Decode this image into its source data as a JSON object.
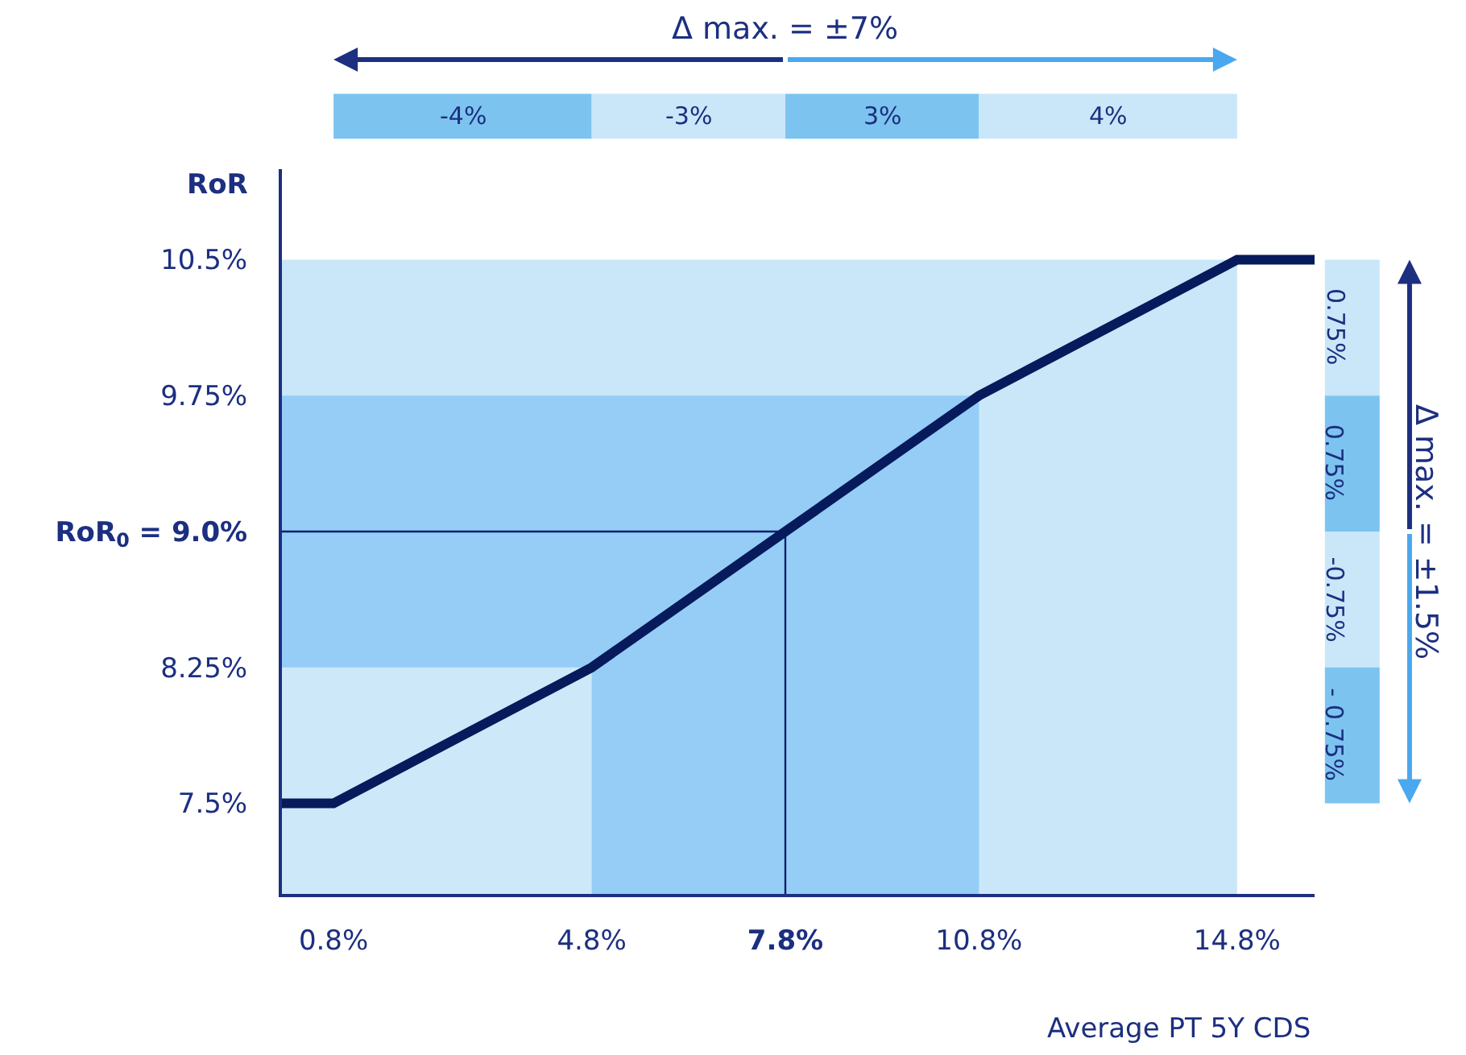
{
  "chart_data": {
    "type": "line",
    "xlabel": "Average PT 5Y CDS",
    "ylabel": "RoR",
    "xlim": [
      0,
      16
    ],
    "ylim": [
      7,
      11
    ],
    "xticks": [
      {
        "value": 0.8,
        "label": "0.8%"
      },
      {
        "value": 4.8,
        "label": "4.8%"
      },
      {
        "value": 7.8,
        "label": "7.8%"
      },
      {
        "value": 10.8,
        "label": "10.8%"
      },
      {
        "value": 14.8,
        "label": "14.8%"
      }
    ],
    "yticks": [
      {
        "value": 7.5,
        "label": "7.5%"
      },
      {
        "value": 8.25,
        "label": "8.25%"
      },
      {
        "value": 9.0,
        "label": "RoR$_{0}$ = 9.0%"
      },
      {
        "value": 9.75,
        "label": "9.75%"
      },
      {
        "value": 10.5,
        "label": "10.5%"
      }
    ],
    "marker": "none",
    "line_style": "solid",
    "series": [
      {
        "type": "area",
        "color": "#c9e7f8",
        "x": [
          0,
          14.8
        ],
        "values": [
          10.5,
          10.5
        ]
      },
      {
        "type": "area",
        "color": "#95cdf6",
        "x": [
          0,
          10.8
        ],
        "values": [
          9.75,
          9.75
        ]
      },
      {
        "type": "area",
        "color": "#cde9f9",
        "x": [
          0,
          4.8
        ],
        "values": [
          8.25,
          8.25
        ]
      },
      {
        "type": "line",
        "color": "#0a1f6b",
        "x": [
          0,
          7.8,
          7.8
        ],
        "values": [
          9.0,
          9.0,
          7
        ]
      },
      {
        "color": "#061a5c",
        "x": [
          0,
          0.8,
          4.8,
          7.8,
          10.8,
          14.8,
          16
        ],
        "values": [
          7.5,
          7.5,
          8.25,
          9.0,
          9.75,
          10.5,
          10.5
        ]
      }
    ],
    "annotations": [
      "Δ max. = ±7%",
      "-4%",
      "-3%",
      "3%",
      "4%",
      "Δ max. = ±1.5%",
      "0.75%",
      "0.75%",
      "-0.75%",
      "- 0.75%"
    ]
  }
}
